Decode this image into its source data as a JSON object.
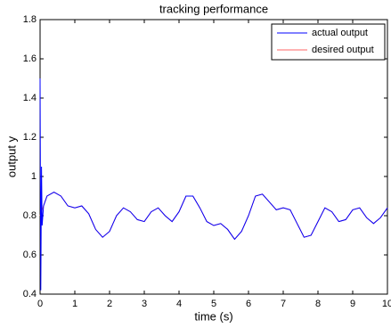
{
  "chart_data": {
    "type": "line",
    "title": "tracking performance",
    "x_label": "time (s)",
    "y_label": "output y",
    "xlim": [
      0,
      10
    ],
    "ylim": [
      0.4,
      1.8
    ],
    "xticks": [
      0,
      1,
      2,
      3,
      4,
      5,
      6,
      7,
      8,
      9,
      10
    ],
    "yticks": [
      0.4,
      0.6,
      0.8,
      1,
      1.2,
      1.4,
      1.6,
      1.8
    ],
    "grid": false,
    "legend": "upper right",
    "series": [
      {
        "name": "actual output",
        "color": "#0000ff",
        "x": [
          0,
          0.02,
          0.04,
          0.06,
          0.1,
          0.2,
          0.4,
          0.6,
          0.8,
          1,
          1.2,
          1.4,
          1.6,
          1.8,
          2,
          2.2,
          2.4,
          2.6,
          2.8,
          3,
          3.2,
          3.4,
          3.6,
          3.8,
          4,
          4.2,
          4.4,
          4.6,
          4.8,
          5,
          5.2,
          5.4,
          5.6,
          5.8,
          6,
          6.2,
          6.4,
          6.6,
          6.8,
          7,
          7.2,
          7.4,
          7.6,
          7.8,
          8,
          8.2,
          8.4,
          8.6,
          8.8,
          9,
          9.2,
          9.4,
          9.6,
          9.8,
          10
        ],
        "values": [
          1.5,
          0.42,
          1.05,
          0.75,
          0.85,
          0.9,
          0.92,
          0.9,
          0.85,
          0.84,
          0.85,
          0.81,
          0.73,
          0.69,
          0.72,
          0.8,
          0.84,
          0.82,
          0.78,
          0.77,
          0.82,
          0.84,
          0.8,
          0.77,
          0.82,
          0.9,
          0.9,
          0.84,
          0.77,
          0.75,
          0.76,
          0.73,
          0.68,
          0.72,
          0.8,
          0.9,
          0.91,
          0.87,
          0.83,
          0.84,
          0.83,
          0.76,
          0.69,
          0.7,
          0.77,
          0.84,
          0.82,
          0.77,
          0.78,
          0.83,
          0.84,
          0.79,
          0.76,
          0.79,
          0.84
        ]
      },
      {
        "name": "desired output",
        "color": "#ff6666",
        "x": [
          0,
          0.2,
          0.4,
          0.6,
          0.8,
          1,
          1.2,
          1.4,
          1.6,
          1.8,
          2,
          2.2,
          2.4,
          2.6,
          2.8,
          3,
          3.2,
          3.4,
          3.6,
          3.8,
          4,
          4.2,
          4.4,
          4.6,
          4.8,
          5,
          5.2,
          5.4,
          5.6,
          5.8,
          6,
          6.2,
          6.4,
          6.6,
          6.8,
          7,
          7.2,
          7.4,
          7.6,
          7.8,
          8,
          8.2,
          8.4,
          8.6,
          8.8,
          9,
          9.2,
          9.4,
          9.6,
          9.8,
          10
        ],
        "values": [
          0.8,
          0.9,
          0.92,
          0.9,
          0.85,
          0.84,
          0.85,
          0.81,
          0.73,
          0.69,
          0.72,
          0.8,
          0.84,
          0.82,
          0.78,
          0.77,
          0.82,
          0.84,
          0.8,
          0.77,
          0.82,
          0.9,
          0.9,
          0.84,
          0.77,
          0.75,
          0.76,
          0.73,
          0.68,
          0.72,
          0.8,
          0.9,
          0.91,
          0.87,
          0.83,
          0.84,
          0.83,
          0.76,
          0.69,
          0.7,
          0.77,
          0.84,
          0.82,
          0.77,
          0.78,
          0.83,
          0.84,
          0.79,
          0.76,
          0.79,
          0.84
        ]
      }
    ]
  }
}
